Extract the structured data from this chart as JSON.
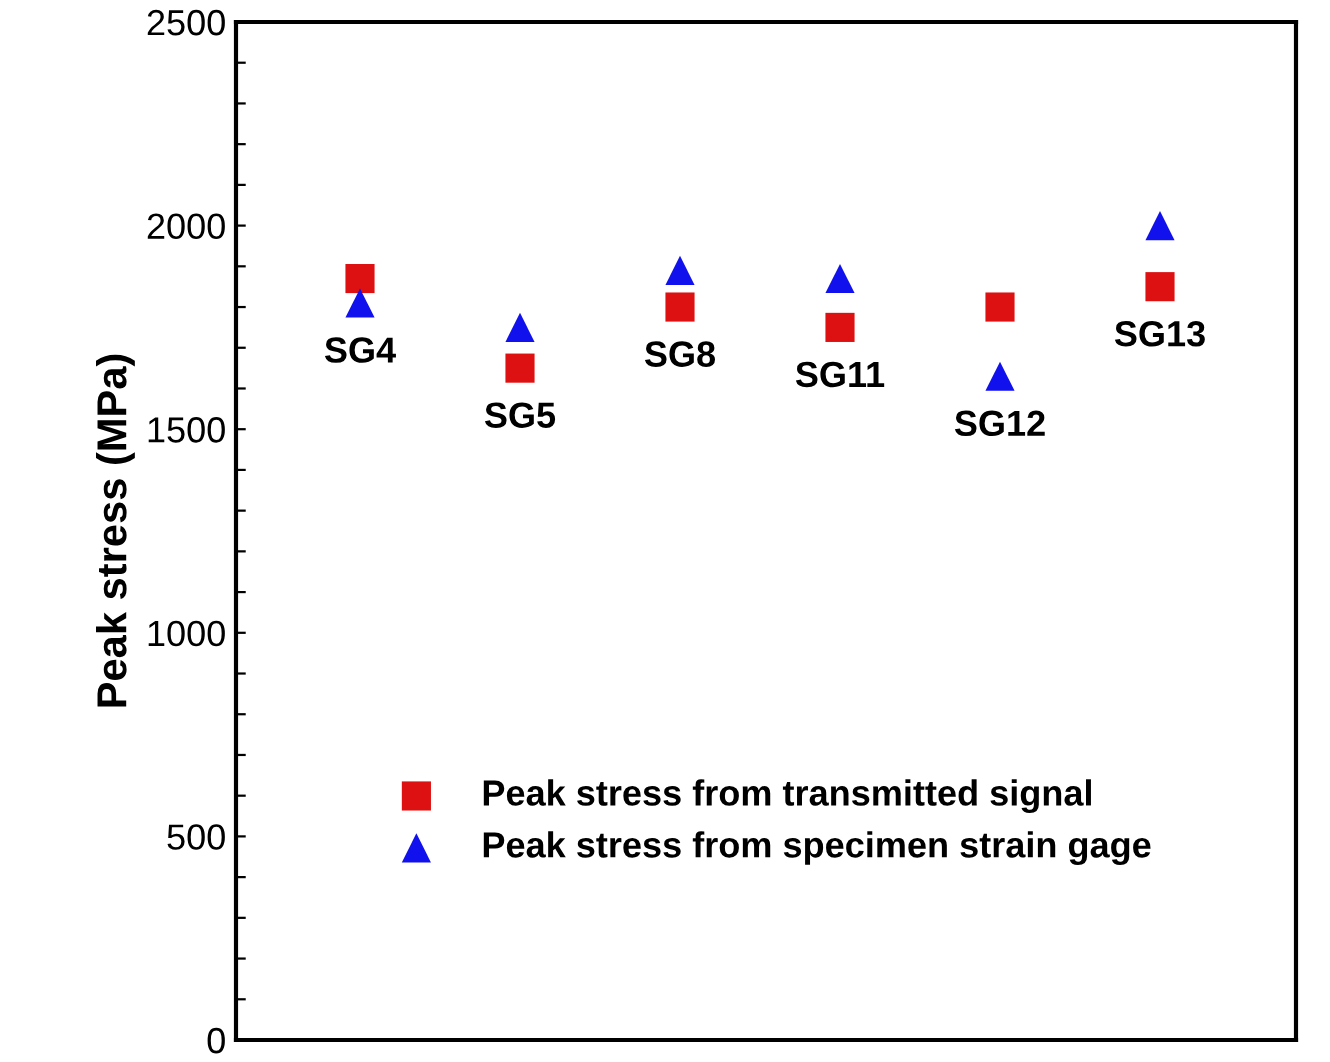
{
  "chart_data": {
    "type": "scatter",
    "ylabel": "Peak stress (MPa)",
    "categories": [
      null,
      null,
      null,
      null,
      null,
      null
    ],
    "series": [
      {
        "name": "Peak stress from transmitted signal",
        "color": "#dd1111",
        "marker": "square",
        "values": [
          1870,
          1650,
          1800,
          1750,
          1800,
          1850
        ]
      },
      {
        "name": "Peak stress from specimen strain gage",
        "color": "#1111ee",
        "marker": "triangle",
        "values": [
          1810,
          1750,
          1890,
          1870,
          1630,
          2000
        ]
      }
    ],
    "annotations": [
      "SG4",
      "SG5",
      "SG8",
      "SG11",
      "SG12",
      "SG13"
    ],
    "ylim": [
      0,
      2500
    ],
    "yticks": [
      0,
      {
        "value": 100,
        "label": null
      },
      {
        "value": 200,
        "label": null
      },
      {
        "value": 300,
        "label": null
      },
      {
        "value": 400,
        "label": null
      },
      500,
      {
        "value": 600,
        "label": null
      },
      {
        "value": 700,
        "label": null
      },
      {
        "value": 800,
        "label": null
      },
      {
        "value": 900,
        "label": null
      },
      1000,
      {
        "value": 1100,
        "label": null
      },
      {
        "value": 1200,
        "label": null
      },
      {
        "value": 1300,
        "label": null
      },
      {
        "value": 1400,
        "label": null
      },
      1500,
      {
        "value": 1600,
        "label": null
      },
      {
        "value": 1700,
        "label": null
      },
      {
        "value": 1800,
        "label": null
      },
      {
        "value": 1900,
        "label": null
      },
      2000,
      {
        "value": 2100,
        "label": null
      },
      {
        "value": 2200,
        "label": null
      },
      {
        "value": 2300,
        "label": null
      },
      {
        "value": 2400,
        "label": null
      },
      2500
    ],
    "tick_labels": "y",
    "grid": false,
    "legend": "bottom"
  }
}
